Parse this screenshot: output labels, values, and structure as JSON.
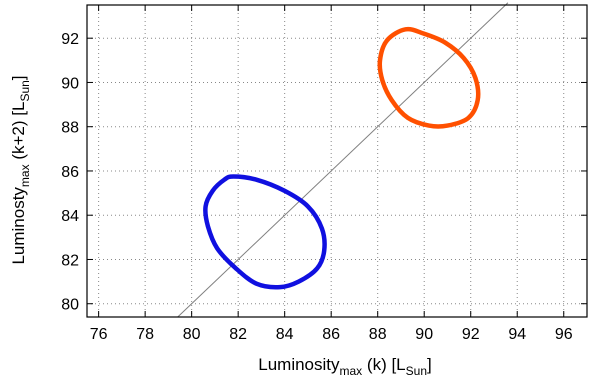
{
  "chart_data": {
    "type": "scatter",
    "xlabel": "Luminosity",
    "xlabel_sub": "max",
    "xlabel_rest": " (k) [L",
    "xlabel_unit_sub": "Sun",
    "xlabel_end": "]",
    "ylabel": "Luminosty",
    "ylabel_sub": "max",
    "ylabel_rest": " (k+2) [L",
    "ylabel_unit_sub": "Sun",
    "ylabel_end": "]",
    "xlim": [
      75.5,
      97
    ],
    "ylim": [
      79.4,
      93.5
    ],
    "xticks": [
      76,
      78,
      80,
      82,
      84,
      86,
      88,
      90,
      92,
      94,
      96
    ],
    "yticks": [
      80,
      82,
      84,
      86,
      88,
      90,
      92
    ],
    "grid": true,
    "reference_line": {
      "x": [
        79.4,
        93.6
      ],
      "y": [
        79.4,
        93.6
      ],
      "color": "#808080"
    },
    "series": [
      {
        "color": "#1010e0",
        "x": [
          81.8,
          82.8,
          84.0,
          85.0,
          85.6,
          85.7,
          85.4,
          84.6,
          83.8,
          82.8,
          81.9,
          81.1,
          80.7,
          80.6,
          80.9,
          81.4,
          81.8
        ],
        "y": [
          85.75,
          85.6,
          85.1,
          84.4,
          83.4,
          82.4,
          81.6,
          81.0,
          80.75,
          80.9,
          81.6,
          82.5,
          83.5,
          84.4,
          85.1,
          85.6,
          85.75
        ]
      },
      {
        "color": "#ff5000",
        "x": [
          89.2,
          90.0,
          90.9,
          91.7,
          92.2,
          92.3,
          91.9,
          91.0,
          90.2,
          89.3,
          88.6,
          88.2,
          88.1,
          88.4,
          89.2
        ],
        "y": [
          92.4,
          92.2,
          91.8,
          91.1,
          90.2,
          89.2,
          88.4,
          88.05,
          88.05,
          88.4,
          89.2,
          90.1,
          91.0,
          91.9,
          92.4
        ]
      }
    ]
  }
}
